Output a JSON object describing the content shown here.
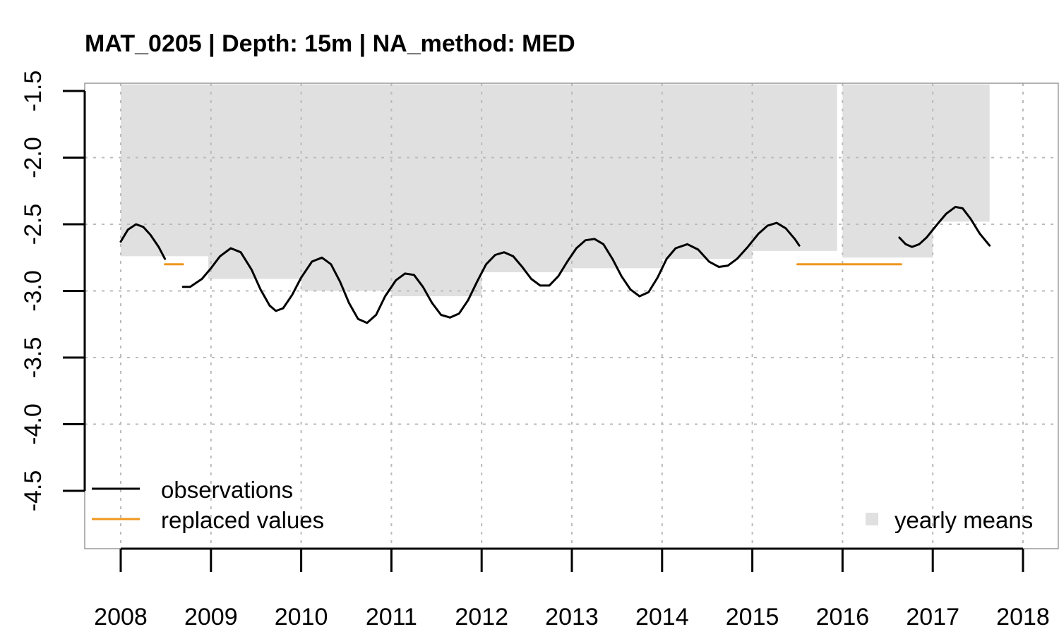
{
  "chart_data": {
    "type": "line",
    "title": "MAT_0205 | Depth: 15m | NA_method: MED",
    "xlabel": "",
    "ylabel": "",
    "xlim": [
      2008,
      2018
    ],
    "ylim": [
      -4.5,
      -1.5
    ],
    "x_ticks": [
      2008,
      2009,
      2010,
      2011,
      2012,
      2013,
      2014,
      2015,
      2016,
      2017,
      2018
    ],
    "x_tick_labels": [
      "2008",
      "2009",
      "2010",
      "2011",
      "2012",
      "2013",
      "2014",
      "2015",
      "2016",
      "2017",
      "2018"
    ],
    "y_ticks": [
      -1.5,
      -2.0,
      -2.5,
      -3.0,
      -3.5,
      -4.0,
      -4.5
    ],
    "y_tick_labels": [
      "-1.5",
      "-2.0",
      "-2.5",
      "-3.0",
      "-3.5",
      "-4.0",
      "-4.5"
    ],
    "grid": true,
    "colors": {
      "observations": "#000000",
      "replaced_values": "#f0961e",
      "yearly_means": "#e0e0e0",
      "grid": "#bbbbbb"
    },
    "series": [
      {
        "name": "observations",
        "segments": [
          [
            [
              2008.0,
              -2.63
            ],
            [
              2008.08,
              -2.54
            ],
            [
              2008.17,
              -2.5
            ],
            [
              2008.25,
              -2.52
            ],
            [
              2008.33,
              -2.58
            ],
            [
              2008.42,
              -2.67
            ],
            [
              2008.49,
              -2.76
            ]
          ],
          [
            [
              2008.69,
              -2.97
            ],
            [
              2008.77,
              -2.97
            ],
            [
              2008.9,
              -2.91
            ],
            [
              2009.0,
              -2.83
            ],
            [
              2009.1,
              -2.74
            ],
            [
              2009.22,
              -2.68
            ],
            [
              2009.33,
              -2.71
            ],
            [
              2009.45,
              -2.84
            ],
            [
              2009.55,
              -2.99
            ],
            [
              2009.65,
              -3.11
            ],
            [
              2009.72,
              -3.15
            ],
            [
              2009.8,
              -3.13
            ],
            [
              2009.9,
              -3.03
            ],
            [
              2010.0,
              -2.9
            ],
            [
              2010.12,
              -2.78
            ],
            [
              2010.23,
              -2.75
            ],
            [
              2010.33,
              -2.8
            ],
            [
              2010.43,
              -2.93
            ],
            [
              2010.53,
              -3.09
            ],
            [
              2010.63,
              -3.21
            ],
            [
              2010.73,
              -3.24
            ],
            [
              2010.83,
              -3.18
            ],
            [
              2010.93,
              -3.04
            ],
            [
              2011.05,
              -2.92
            ],
            [
              2011.15,
              -2.87
            ],
            [
              2011.25,
              -2.88
            ],
            [
              2011.35,
              -2.97
            ],
            [
              2011.45,
              -3.09
            ],
            [
              2011.55,
              -3.18
            ],
            [
              2011.65,
              -3.2
            ],
            [
              2011.75,
              -3.17
            ],
            [
              2011.85,
              -3.07
            ],
            [
              2011.95,
              -2.93
            ],
            [
              2012.05,
              -2.8
            ],
            [
              2012.15,
              -2.73
            ],
            [
              2012.25,
              -2.71
            ],
            [
              2012.35,
              -2.74
            ],
            [
              2012.45,
              -2.82
            ],
            [
              2012.55,
              -2.91
            ],
            [
              2012.65,
              -2.96
            ],
            [
              2012.75,
              -2.96
            ],
            [
              2012.85,
              -2.89
            ],
            [
              2012.95,
              -2.78
            ],
            [
              2013.05,
              -2.68
            ],
            [
              2013.15,
              -2.62
            ],
            [
              2013.25,
              -2.61
            ],
            [
              2013.35,
              -2.65
            ],
            [
              2013.45,
              -2.76
            ],
            [
              2013.55,
              -2.89
            ],
            [
              2013.65,
              -2.99
            ],
            [
              2013.75,
              -3.04
            ],
            [
              2013.85,
              -3.01
            ],
            [
              2013.95,
              -2.9
            ],
            [
              2014.05,
              -2.76
            ],
            [
              2014.15,
              -2.68
            ],
            [
              2014.28,
              -2.65
            ],
            [
              2014.4,
              -2.69
            ],
            [
              2014.52,
              -2.78
            ],
            [
              2014.63,
              -2.82
            ],
            [
              2014.73,
              -2.81
            ],
            [
              2014.83,
              -2.76
            ],
            [
              2014.95,
              -2.67
            ],
            [
              2015.07,
              -2.57
            ],
            [
              2015.17,
              -2.51
            ],
            [
              2015.27,
              -2.49
            ],
            [
              2015.37,
              -2.53
            ],
            [
              2015.47,
              -2.61
            ],
            [
              2015.52,
              -2.66
            ]
          ],
          [
            [
              2016.63,
              -2.6
            ],
            [
              2016.7,
              -2.65
            ],
            [
              2016.77,
              -2.67
            ],
            [
              2016.85,
              -2.65
            ],
            [
              2016.93,
              -2.6
            ],
            [
              2017.05,
              -2.5
            ],
            [
              2017.15,
              -2.42
            ],
            [
              2017.25,
              -2.37
            ],
            [
              2017.33,
              -2.38
            ],
            [
              2017.42,
              -2.46
            ],
            [
              2017.52,
              -2.57
            ],
            [
              2017.63,
              -2.66
            ]
          ]
        ]
      },
      {
        "name": "replaced values",
        "segments": [
          [
            [
              2008.49,
              -2.8
            ],
            [
              2008.69,
              -2.8
            ]
          ],
          [
            [
              2015.5,
              -2.8
            ],
            [
              2016.65,
              -2.8
            ]
          ]
        ]
      }
    ],
    "yearly_means": {
      "name": "yearly means",
      "top": -1.45,
      "bars": [
        {
          "from": 2008.0,
          "to": 2008.97,
          "value": -2.74
        },
        {
          "from": 2008.97,
          "to": 2010.0,
          "value": -2.91
        },
        {
          "from": 2010.0,
          "to": 2011.0,
          "value": -3.0
        },
        {
          "from": 2011.0,
          "to": 2012.0,
          "value": -3.04
        },
        {
          "from": 2012.0,
          "to": 2013.0,
          "value": -2.86
        },
        {
          "from": 2013.0,
          "to": 2014.0,
          "value": -2.83
        },
        {
          "from": 2014.0,
          "to": 2015.0,
          "value": -2.76
        },
        {
          "from": 2015.0,
          "to": 2015.94,
          "value": -2.7
        },
        {
          "from": 2016.0,
          "to": 2017.0,
          "value": -2.75
        },
        {
          "from": 2017.0,
          "to": 2017.63,
          "value": -2.48
        }
      ]
    },
    "legend": {
      "placement": "bottom",
      "items": [
        {
          "label": "observations",
          "kind": "line",
          "color": "#000000"
        },
        {
          "label": "replaced values",
          "kind": "line",
          "color": "#f0961e"
        },
        {
          "label": "yearly means",
          "kind": "square",
          "color": "#e0e0e0"
        }
      ]
    }
  }
}
